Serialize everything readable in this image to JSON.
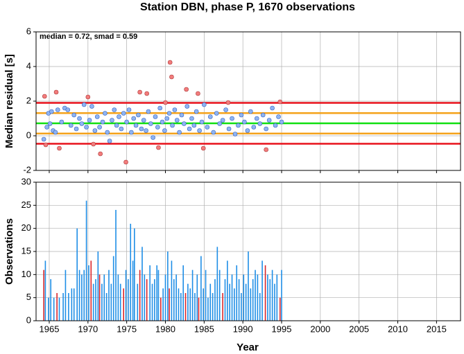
{
  "chart_data": [
    {
      "type": "scatter",
      "title": "Station DBN, phase P, 1670 observations",
      "y_label": "Median residual [s]",
      "annotation": "median = 0.72, smad = 0.59",
      "xlim": [
        1963.3,
        2018.1
      ],
      "xticks": [
        1965,
        1970,
        1975,
        1980,
        1985,
        1990,
        1995,
        2000,
        2005,
        2010,
        2015
      ],
      "ylim": [
        -2,
        6
      ],
      "yticks": [
        -2,
        0,
        2,
        4,
        6
      ],
      "grid": true,
      "point_color": "#8fb4f2",
      "outlier_color": "#f27c7c",
      "hlines": [
        {
          "value": 1.9,
          "color": "#e8101a"
        },
        {
          "value": 1.31,
          "color": "#f4a21a"
        },
        {
          "value": 0.72,
          "color": "#10e010"
        },
        {
          "value": 0.13,
          "color": "#f4a21a"
        },
        {
          "value": -0.46,
          "color": "#e8101a"
        }
      ],
      "x": [
        1964.4,
        1964.55,
        1965.9,
        1966.3,
        1970.0,
        1970.7,
        1971.6,
        1974.9,
        1976.7,
        1977.6,
        1979.1,
        1980.6,
        1980.8,
        1980.0,
        1982.7,
        1984.2,
        1984.9,
        1988.1,
        1993.0,
        1994.8,
        1964.3,
        1964.7,
        1964.9,
        1965.1,
        1965.3,
        1965.5,
        1965.8,
        1966.1,
        1966.6,
        1967.0,
        1967.4,
        1967.8,
        1968.2,
        1968.5,
        1968.9,
        1969.2,
        1969.5,
        1969.8,
        1970.2,
        1970.5,
        1970.9,
        1971.2,
        1971.5,
        1971.9,
        1972.2,
        1972.5,
        1972.8,
        1973.1,
        1973.4,
        1973.7,
        1974.0,
        1974.3,
        1974.6,
        1975.0,
        1975.3,
        1975.6,
        1975.9,
        1976.2,
        1976.5,
        1976.9,
        1977.2,
        1977.5,
        1977.8,
        1978.1,
        1978.4,
        1978.7,
        1979.0,
        1979.3,
        1979.6,
        1979.9,
        1980.2,
        1980.5,
        1980.9,
        1981.2,
        1981.5,
        1981.8,
        1982.1,
        1982.4,
        1982.8,
        1983.1,
        1983.4,
        1983.7,
        1984.0,
        1984.4,
        1984.7,
        1985.0,
        1985.4,
        1985.8,
        1986.2,
        1986.6,
        1987.0,
        1987.4,
        1987.8,
        1988.2,
        1988.6,
        1989.0,
        1989.4,
        1989.8,
        1990.2,
        1990.6,
        1991.0,
        1991.4,
        1991.8,
        1992.2,
        1992.6,
        1993.0,
        1993.4,
        1993.8,
        1994.2,
        1994.6,
        1995.0
      ],
      "values": [
        2.28,
        -0.52,
        2.52,
        -0.72,
        2.24,
        -0.48,
        -1.04,
        -1.52,
        2.52,
        2.44,
        -0.68,
        4.24,
        3.4,
        1.92,
        2.68,
        2.44,
        -0.72,
        1.92,
        -0.8,
        1.96,
        -0.2,
        0.5,
        1.3,
        0.7,
        1.4,
        0.3,
        0.2,
        1.5,
        0.8,
        1.6,
        1.5,
        0.6,
        1.2,
        0.4,
        1.0,
        0.7,
        1.8,
        0.5,
        0.9,
        1.7,
        0.3,
        1.1,
        0.5,
        0.8,
        1.3,
        0.2,
        -0.3,
        0.9,
        1.5,
        0.6,
        1.1,
        0.4,
        1.3,
        0.8,
        1.5,
        0.2,
        1.0,
        0.6,
        1.2,
        0.4,
        0.9,
        0.3,
        1.4,
        0.7,
        -0.1,
        1.1,
        0.5,
        1.6,
        0.8,
        0.3,
        1.0,
        1.3,
        0.6,
        1.5,
        0.9,
        0.2,
        1.2,
        0.7,
        1.7,
        0.4,
        1.0,
        0.6,
        1.4,
        0.3,
        0.8,
        1.8,
        0.5,
        1.1,
        0.2,
        1.3,
        0.7,
        0.9,
        1.5,
        0.4,
        1.0,
        0.1,
        0.6,
        1.2,
        0.8,
        0.3,
        1.4,
        0.5,
        1.0,
        0.7,
        1.2,
        0.4,
        0.9,
        1.6,
        0.6,
        1.1,
        0.8
      ]
    },
    {
      "type": "bar",
      "x_label": "Year",
      "y_label": "Observations",
      "xlim": [
        1963.3,
        2018.1
      ],
      "xticks": [
        1965,
        1970,
        1975,
        1980,
        1985,
        1990,
        1995,
        2000,
        2005,
        2010,
        2015
      ],
      "ylim": [
        0,
        30
      ],
      "yticks": [
        0,
        5,
        10,
        15,
        20,
        25,
        30
      ],
      "grid": true,
      "color": "#1e8ee6",
      "x": [
        1964.5,
        1964.9,
        1965.2,
        1965.6,
        1966.3,
        1966.8,
        1967.1,
        1967.5,
        1967.9,
        1968.2,
        1968.6,
        1968.9,
        1969.2,
        1969.5,
        1969.8,
        1970.1,
        1970.7,
        1971.0,
        1971.3,
        1971.8,
        1972.1,
        1972.4,
        1972.7,
        1973.0,
        1973.3,
        1973.6,
        1973.9,
        1974.2,
        1974.9,
        1975.2,
        1975.5,
        1975.8,
        1976.0,
        1976.4,
        1977.0,
        1977.3,
        1978.0,
        1978.3,
        1978.6,
        1978.9,
        1979.1,
        1979.7,
        1980.0,
        1980.3,
        1980.8,
        1981.1,
        1981.4,
        1981.7,
        1982.0,
        1982.3,
        1982.9,
        1983.2,
        1983.5,
        1983.8,
        1984.1,
        1984.6,
        1984.9,
        1985.2,
        1985.5,
        1985.8,
        1986.1,
        1986.4,
        1986.7,
        1987.0,
        1987.7,
        1988.0,
        1988.3,
        1988.6,
        1988.9,
        1989.2,
        1989.5,
        1989.8,
        1990.1,
        1990.4,
        1990.7,
        1991.0,
        1991.3,
        1991.6,
        1991.9,
        1992.2,
        1992.5,
        1993.2,
        1993.5,
        1993.8,
        1994.1,
        1994.4,
        1995.0
      ],
      "values": [
        13,
        5,
        9,
        5,
        5,
        6,
        11,
        6,
        7,
        7,
        20,
        11,
        10,
        11,
        26,
        12,
        8,
        9,
        15,
        8,
        10,
        6,
        11,
        8,
        14,
        24,
        10,
        8,
        11,
        9,
        21,
        13,
        20,
        8,
        16,
        10,
        12,
        8,
        9,
        12,
        11,
        7,
        10,
        15,
        13,
        9,
        10,
        7,
        6,
        12,
        8,
        7,
        11,
        6,
        10,
        14,
        7,
        11,
        5,
        8,
        6,
        9,
        16,
        11,
        9,
        13,
        8,
        10,
        7,
        12,
        9,
        6,
        10,
        8,
        15,
        7,
        9,
        11,
        10,
        6,
        13,
        10,
        9,
        11,
        8,
        10,
        11
      ],
      "outlier_color": "#d8262b",
      "outlier_x": [
        1964.3,
        1966.0,
        1970.4,
        1971.5,
        1974.6,
        1976.7,
        1977.6,
        1979.4,
        1980.5,
        1982.6,
        1984.3,
        1987.4,
        1992.9,
        1994.8
      ],
      "outlier_values": [
        11,
        6,
        13,
        10,
        7,
        11,
        9,
        5,
        7,
        6,
        5,
        6,
        12,
        5
      ]
    }
  ]
}
